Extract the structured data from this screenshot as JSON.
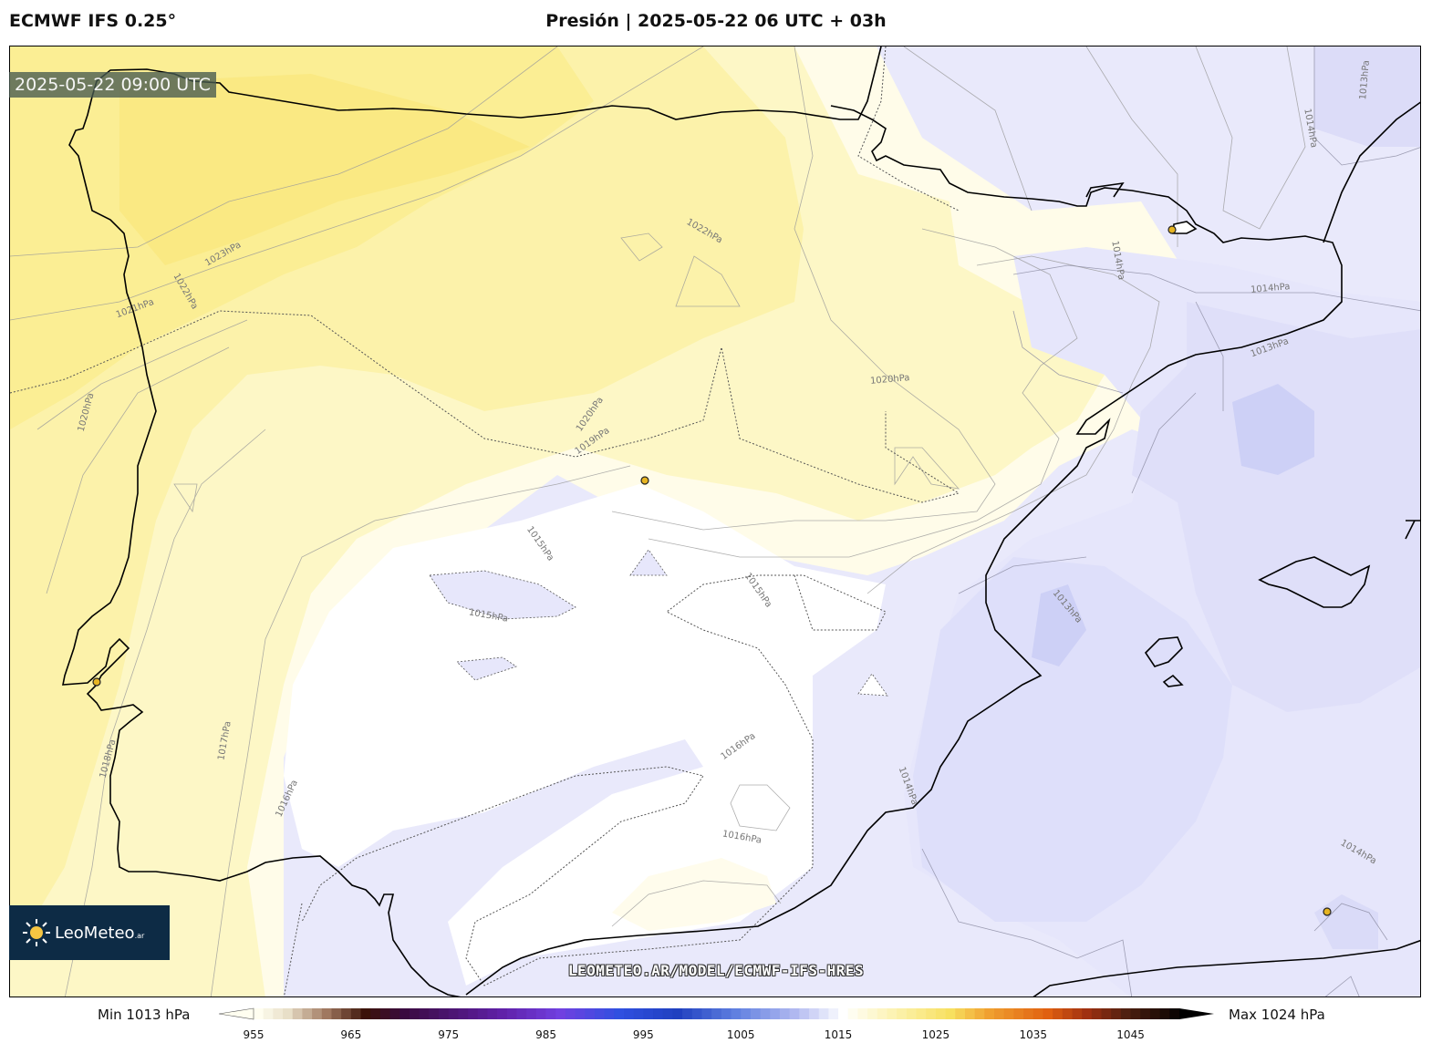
{
  "header": {
    "model": "ECMWF IFS 0.25°",
    "title": "Presión | 2025-05-22 06 UTC + 03h"
  },
  "valid_time": "2025-05-22 09:00 UTC",
  "logo": {
    "name": "LeoMeteo",
    "suffix": ".ar",
    "icon": "sun-icon"
  },
  "watermark": "LEOMETEO.AR/MODEL/ECMWF-IFS-HRES",
  "colorbar": {
    "min_label": "Min 1013 hPa",
    "max_label": "Max 1024 hPa",
    "ticks": [
      "955",
      "965",
      "975",
      "985",
      "995",
      "1005",
      "1015",
      "1025",
      "1035",
      "1045"
    ],
    "range": [
      955,
      1050
    ]
  },
  "contour_labels": [
    "1023hPa",
    "1022hPa",
    "1022hPa",
    "1021hPa",
    "1020hPa",
    "1020hPa",
    "1020hPa",
    "1019hPa",
    "1018hPa",
    "1017hPa",
    "1016hPa",
    "1016hPa",
    "1016hPa",
    "1015hPa",
    "1015hPa",
    "1015hPa",
    "1014hPa",
    "1014hPa",
    "1014hPa",
    "1014hPa",
    "1014hPa",
    "1013hPa",
    "1013hPa",
    "1013hPa"
  ],
  "colors": {
    "high": "#fdf3a0",
    "mid": "#fffbe6",
    "neutral": "#ffffff",
    "low": "#e8e8fb",
    "lowest": "#c9ccf4",
    "coast": "#000000",
    "city_marker": "#e6b422",
    "logo_bg": "#0d2b45"
  }
}
